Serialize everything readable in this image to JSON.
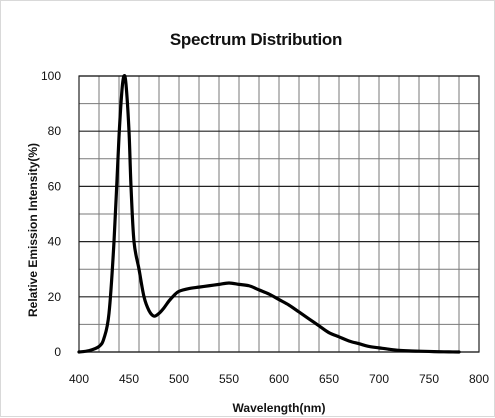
{
  "chart_data": {
    "type": "line",
    "title": "Spectrum Distribution",
    "xlabel": "Wavelength(nm)",
    "ylabel": "Relative Emission Intensity(%)",
    "xlim": [
      400,
      800
    ],
    "ylim": [
      0,
      100
    ],
    "x_ticks": [
      400,
      450,
      500,
      550,
      600,
      650,
      700,
      750,
      800
    ],
    "y_ticks": [
      0,
      20,
      40,
      60,
      80,
      100
    ],
    "x_grid_step": 20,
    "y_grid_step": 10,
    "major_y_gridlines": [
      0,
      20,
      40,
      60,
      80,
      100
    ],
    "grid": true,
    "series": [
      {
        "color": "#000000",
        "x": [
          400,
          410,
          420,
          425,
          430,
          435,
          440,
          443,
          445,
          447,
          450,
          452,
          455,
          460,
          465,
          470,
          475,
          480,
          485,
          490,
          495,
          500,
          510,
          520,
          530,
          540,
          550,
          560,
          570,
          580,
          590,
          600,
          610,
          620,
          630,
          640,
          650,
          660,
          670,
          680,
          690,
          700,
          710,
          720,
          730,
          740,
          750,
          760,
          770,
          780
        ],
        "y": [
          0,
          0.5,
          2,
          5,
          14,
          40,
          78,
          95,
          100,
          97,
          80,
          60,
          40,
          30,
          20,
          15,
          13,
          14,
          16,
          18.5,
          20.5,
          22,
          23,
          23.5,
          24,
          24.5,
          25,
          24.5,
          24,
          22.5,
          21,
          19,
          17,
          14.5,
          12,
          9.5,
          7,
          5.5,
          4,
          3,
          2,
          1.5,
          1,
          0.6,
          0.4,
          0.3,
          0.2,
          0.1,
          0.05,
          0
        ]
      }
    ]
  }
}
